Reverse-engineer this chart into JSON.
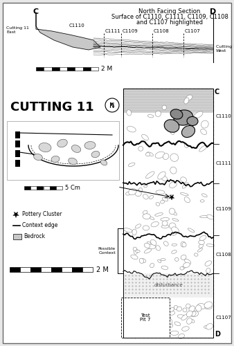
{
  "title_line1": "North Facing Section",
  "title_line2": "Surface of C1110, C1111, C1109, C1108",
  "title_line3": "and C1107 highlighted",
  "bg_color": "#ebebeb",
  "white": "#ffffff",
  "black": "#000000",
  "cutting_11_label": "CUTTING 11",
  "legend_pottery": "Pottery Cluster",
  "legend_context": "Context edge",
  "legend_bedrock": "Bedrock",
  "scale_2m": "2 M",
  "scale_5cm": "5 Cm",
  "possible_context": "Possible\nContext",
  "disturbance": "disturbance",
  "test_pit": "Test\nPit 7",
  "context_labels_right": [
    "C1110",
    "C1111",
    "C1109",
    "C1108",
    "C1107"
  ],
  "section_context_labels": [
    "C1110",
    "C1111",
    "C1109",
    "C1108",
    "C1107"
  ]
}
